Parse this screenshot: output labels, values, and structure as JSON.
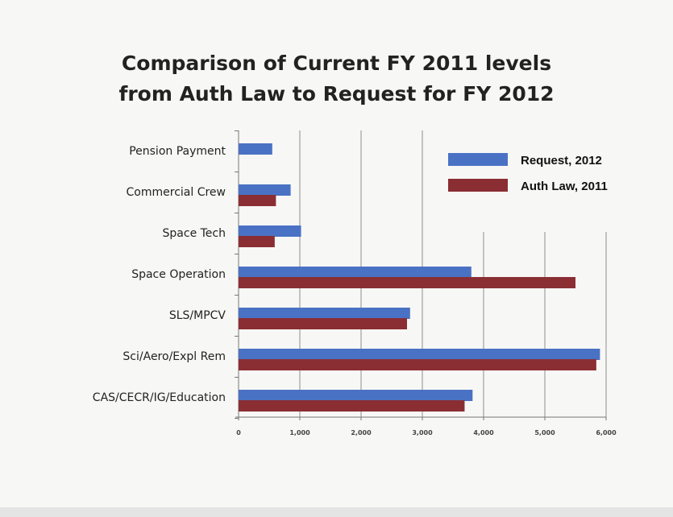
{
  "title_line1": "Comparison of Current FY 2011 levels",
  "title_line2": "from Auth Law to Request for FY 2012",
  "colors": {
    "request": "#4a72c4",
    "authlaw": "#8a2e33",
    "grid": "#8c8c8c"
  },
  "chart_data": {
    "type": "bar",
    "orientation": "horizontal",
    "title": "Comparison of Current FY 2011 levels from Auth Law to Request for FY 2012",
    "categories": [
      "Pension Payment",
      "Commercial Crew",
      "Space Tech",
      "Space Operation",
      "SLS/MPCV",
      "Sci/Aero/Expl Rem",
      "CAS/CECR/IG/Education"
    ],
    "series": [
      {
        "name": "Request, 2012",
        "values": [
          550,
          850,
          1020,
          3800,
          2800,
          5900,
          3820
        ]
      },
      {
        "name": "Auth Law, 2011",
        "values": [
          null,
          610,
          590,
          5500,
          2750,
          5840,
          3690
        ]
      }
    ],
    "xticks": [
      "0",
      "1,000",
      "2,000",
      "3,000",
      "4,000",
      "5,000",
      "6,000"
    ],
    "xlim": [
      0,
      6000
    ],
    "grid": true,
    "legend_position": "top-right"
  }
}
